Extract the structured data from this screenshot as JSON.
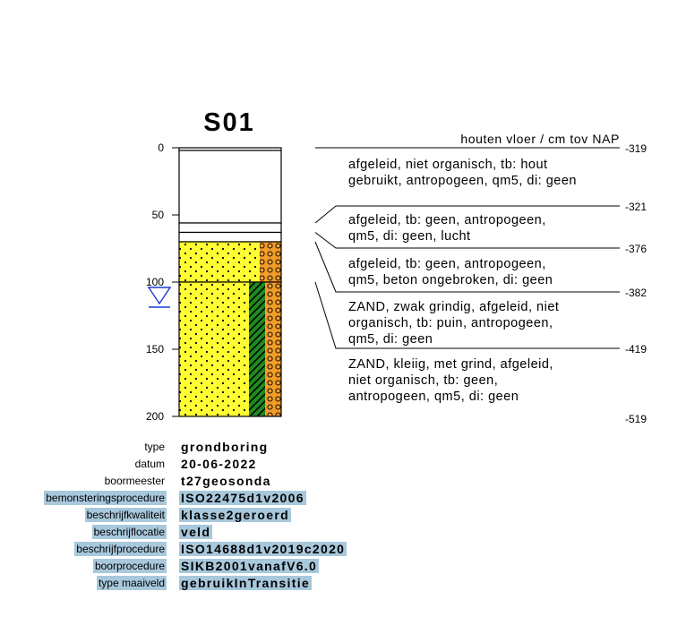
{
  "title": "S01",
  "reference_label": "houten vloer / cm tov NAP",
  "depth_axis": {
    "ticks": [
      0,
      50,
      100,
      150,
      200
    ],
    "max": 200
  },
  "groundwater_depth": 108,
  "colors": {
    "sand": "#ffff33",
    "gravel": "#f39c2a",
    "clay": "#1e8c1e",
    "highlight": "#a8c8dc"
  },
  "layers": [
    {
      "top": 0,
      "bottom": 56,
      "lithology": "anthropogenic",
      "description": [
        "afgeleid, niet organisch, tb: hout",
        "gebruikt, antropogeen, qm5, di: geen"
      ]
    },
    {
      "top": 56,
      "bottom": 63,
      "lithology": "anthropogenic",
      "description": [
        "afgeleid, tb: geen, antropogeen,",
        "qm5, di: geen, lucht"
      ]
    },
    {
      "top": 63,
      "bottom": 70,
      "lithology": "anthropogenic",
      "description": [
        "afgeleid, tb: geen, antropogeen,",
        "qm5, beton ongebroken, di: geen"
      ]
    },
    {
      "top": 70,
      "bottom": 100,
      "lithology": "zand-grindig",
      "description": [
        "ZAND, zwak grindig, afgeleid, niet",
        "organisch, tb: puin, antropogeen,",
        "qm5, di: geen"
      ]
    },
    {
      "top": 100,
      "bottom": 200,
      "lithology": "zand-kleiig-grind",
      "description": [
        "ZAND, kleiig, met grind, afgeleid,",
        "niet organisch, tb: geen,",
        "antropogeen, qm5, di: geen"
      ]
    }
  ],
  "level_labels": [
    "-319",
    "-321",
    "-376",
    "-382",
    "-419",
    "-519"
  ],
  "metadata": [
    {
      "label": "type",
      "value": "grondboring",
      "highlight": false
    },
    {
      "label": "datum",
      "value": "20-06-2022",
      "highlight": false
    },
    {
      "label": "boormeester",
      "value": "t27geosonda",
      "highlight": false
    },
    {
      "label": "bemonsteringsprocedure",
      "value": "ISO22475d1v2006",
      "highlight": true
    },
    {
      "label": "beschrijfkwaliteit",
      "value": "klasse2geroerd",
      "highlight": true
    },
    {
      "label": "beschrijflocatie",
      "value": "veld",
      "highlight": true
    },
    {
      "label": "beschrijfprocedure",
      "value": "ISO14688d1v2019c2020",
      "highlight": true
    },
    {
      "label": "boorprocedure",
      "value": "SIKB2001vanafV6.0",
      "highlight": true
    },
    {
      "label": "type maaiveld",
      "value": "gebruikInTransitie",
      "highlight": true
    }
  ]
}
